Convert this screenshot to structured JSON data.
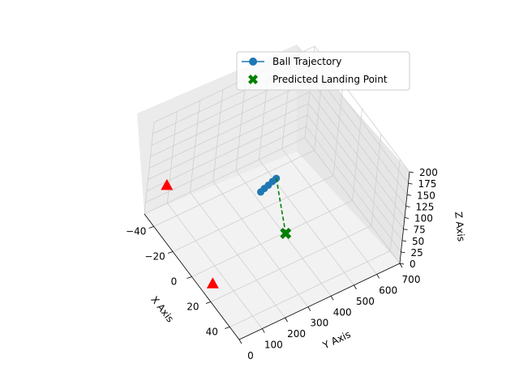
{
  "chart_data": {
    "type": "scatter3d",
    "title": "",
    "xlabel": "X Axis",
    "ylabel": "Y Axis",
    "zlabel": "Z Axis",
    "xlim": [
      -50,
      50
    ],
    "ylim": [
      0,
      700
    ],
    "zlim": [
      0,
      200
    ],
    "x_ticks": [
      -40,
      -20,
      0,
      20,
      40
    ],
    "y_ticks": [
      0,
      100,
      200,
      300,
      400,
      500,
      600,
      700
    ],
    "z_ticks": [
      0,
      25,
      50,
      75,
      100,
      125,
      150,
      175,
      200
    ],
    "grid": true,
    "legend_position": "top-right",
    "series": [
      {
        "name": "Ball Trajectory",
        "kind": "line-marker",
        "color": "#1f77b4",
        "points": [
          {
            "x": -3,
            "y": 290,
            "z": 108
          },
          {
            "x": -2,
            "y": 300,
            "z": 116
          },
          {
            "x": -1,
            "y": 312,
            "z": 123
          },
          {
            "x": 0,
            "y": 324,
            "z": 131
          },
          {
            "x": 1,
            "y": 335,
            "z": 138
          }
        ]
      },
      {
        "name": "Predicted Landing Point",
        "kind": "marker-x",
        "color": "#008000",
        "points": [
          {
            "x": 2,
            "y": 400,
            "z": 5
          }
        ]
      },
      {
        "name": "",
        "kind": "dashed-line",
        "color": "#008000",
        "points": [
          {
            "x": 1,
            "y": 335,
            "z": 138
          },
          {
            "x": 2,
            "y": 400,
            "z": 5
          }
        ]
      },
      {
        "name": "",
        "kind": "marker-triangle",
        "color": "#ff0000",
        "points": [
          {
            "x": -40,
            "y": 40,
            "z": 80
          },
          {
            "x": 10,
            "y": 50,
            "z": 0
          }
        ]
      }
    ]
  }
}
